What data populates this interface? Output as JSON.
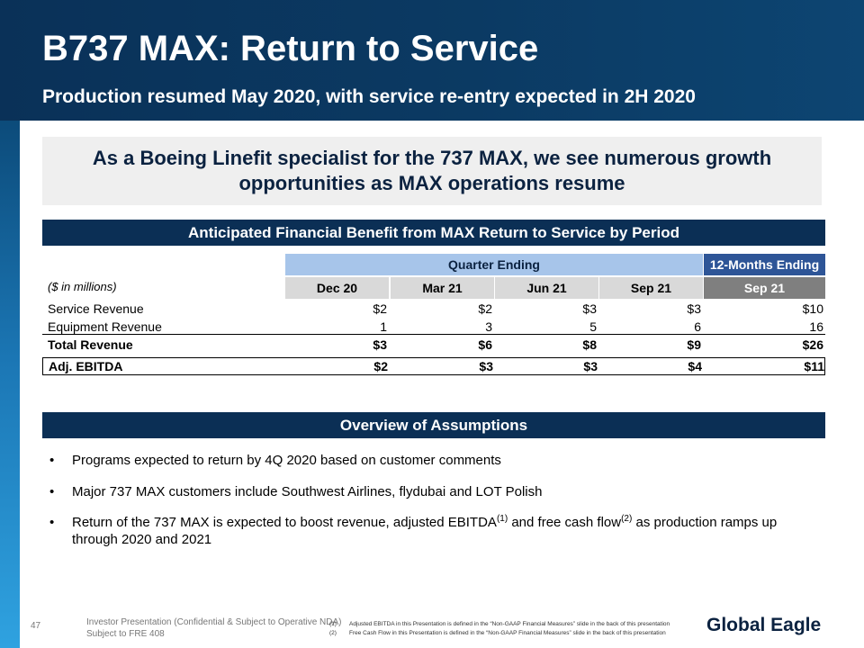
{
  "header": {
    "title": "B737 MAX: Return to Service",
    "subtitle": "Production resumed May 2020, with service re-entry expected in 2H 2020"
  },
  "highlight": {
    "text": "As a Boeing Linefit specialist for the 737 MAX, we see numerous growth opportunities as MAX operations resume"
  },
  "financial_section": {
    "title": "Anticipated Financial Benefit from MAX Return to Service by Period",
    "units_note": "($ in millions)",
    "group_headers": {
      "quarter": "Quarter Ending",
      "twelve_month": "12-Months Ending"
    },
    "columns": [
      "Dec 20",
      "Mar 21",
      "Jun 21",
      "Sep 21",
      "Sep 21"
    ],
    "rows": [
      {
        "label": "Service Revenue",
        "values": [
          "$2",
          "$2",
          "$3",
          "$3",
          "$10"
        ]
      },
      {
        "label": "Equipment Revenue",
        "values": [
          "1",
          "3",
          "5",
          "6",
          "16"
        ]
      },
      {
        "label": "Total Revenue",
        "values": [
          "$3",
          "$6",
          "$8",
          "$9",
          "$26"
        ]
      },
      {
        "label": "Adj. EBITDA",
        "values": [
          "$2",
          "$3",
          "$3",
          "$4",
          "$11"
        ]
      }
    ]
  },
  "assumptions_section": {
    "title": "Overview of Assumptions",
    "bullets": [
      {
        "text": "Programs expected to return by 4Q 2020 based on customer comments"
      },
      {
        "text": "Major 737 MAX customers include Southwest Airlines, flydubai and LOT Polish"
      },
      {
        "text_part1": "Return of the 737 MAX is expected to boost revenue, adjusted EBITDA",
        "sup1": "(1)",
        "text_part2": " and free cash flow",
        "sup2": "(2)",
        "text_part3": " as production ramps up through 2020 and 2021"
      }
    ]
  },
  "footer": {
    "page_number": "47",
    "line1": "Investor Presentation (Confidential & Subject to Operative NDA)",
    "line2": "Subject to FRE 408",
    "footnotes": [
      {
        "num": "(1)",
        "text": "Adjusted EBITDA in this Presentation is defined in the “Non-GAAP Financial Measures” slide in the back of this presentation"
      },
      {
        "num": "(2)",
        "text": "Free Cash Flow in this Presentation is defined in the “Non-GAAP Financial Measures” slide in the back of this presentation"
      }
    ],
    "logo_text": "Global Eagle"
  },
  "colors": {
    "header_band": "#0b3a63",
    "section_bar": "#0b2f55",
    "quarter_header": "#a7c5ea",
    "twelve_month_header": "#2e5597",
    "column_header": "#d9d9d9",
    "column_header_12m": "#7f7f7f",
    "highlight_bg": "#efefef"
  }
}
